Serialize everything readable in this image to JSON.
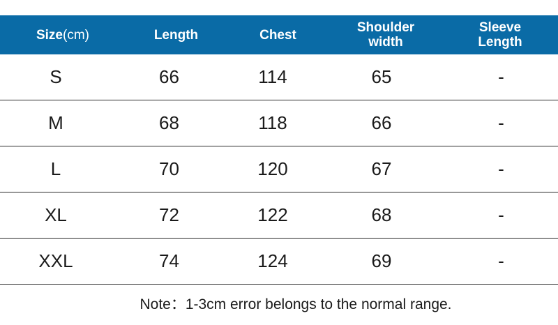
{
  "table": {
    "headers": {
      "size_main": "Size",
      "size_unit": "(cm)",
      "length": "Length",
      "chest": "Chest",
      "shoulder_line1": "Shoulder",
      "shoulder_line2": "width",
      "sleeve_line1": "Sleeve",
      "sleeve_line2": "Length"
    },
    "rows": [
      {
        "size": "S",
        "length": "66",
        "chest": "114",
        "shoulder": "65",
        "sleeve": "-"
      },
      {
        "size": "M",
        "length": "68",
        "chest": "118",
        "shoulder": "66",
        "sleeve": "-"
      },
      {
        "size": "L",
        "length": "70",
        "chest": "120",
        "shoulder": "67",
        "sleeve": "-"
      },
      {
        "size": "XL",
        "length": "72",
        "chest": "122",
        "shoulder": "68",
        "sleeve": "-"
      },
      {
        "size": "XXL",
        "length": "74",
        "chest": "124",
        "shoulder": "69",
        "sleeve": "-"
      }
    ]
  },
  "note": "Note：1-3cm error belongs to the normal range.",
  "colors": {
    "header_bg": "#0a6ba6",
    "header_text": "#ffffff",
    "body_text": "#1a1a1a",
    "row_divider": "#2b2b2b"
  }
}
